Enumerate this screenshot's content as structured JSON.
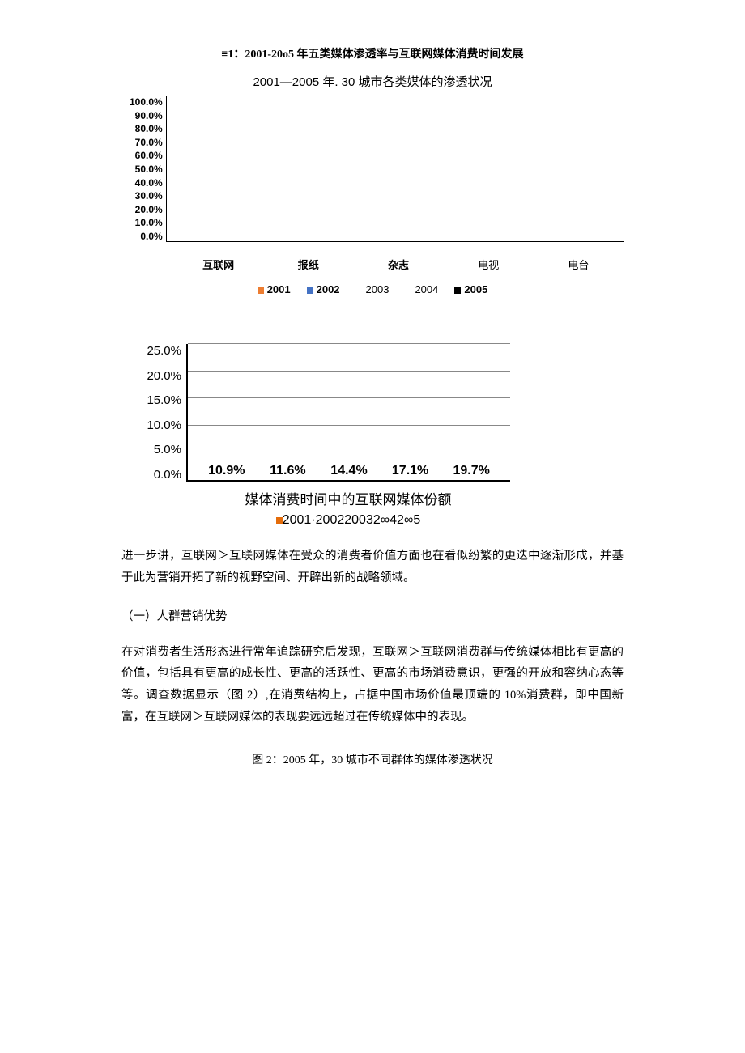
{
  "figure1": {
    "caption": "≡1：2001-20o5 年五类媒体渗透率与互联网媒体消费时间发展",
    "chart_top": {
      "type": "grouped-bar",
      "title": "2001—2005 年. 30 城市各类媒体的渗透状况",
      "ylabel_ticks": [
        "100.0%",
        "90.0%",
        "80.0%",
        "70.0%",
        "60.0%",
        "50.0%",
        "40.0%",
        "30.0%",
        "20.0%",
        "10.0%",
        "0.0%"
      ],
      "ylim": [
        0,
        100
      ],
      "categories": [
        "互联网",
        "报纸",
        "杂志",
        "电视",
        "电台"
      ],
      "categories_bold": [
        true,
        true,
        true,
        false,
        false
      ],
      "series": [
        {
          "label": "2001",
          "color": "#ed7d31",
          "sw_visible": true,
          "label_bold": true
        },
        {
          "label": "2002",
          "color": "#4472c4",
          "sw_visible": true,
          "label_bold": true
        },
        {
          "label": "2003",
          "color": "#000000",
          "sw_visible": false,
          "label_bold": false
        },
        {
          "label": "2004",
          "color": "#000000",
          "sw_visible": false,
          "label_bold": false
        },
        {
          "label": "2005",
          "color": "#000000",
          "sw_visible": true,
          "label_bold": true
        }
      ],
      "values": null,
      "title_fontsize": 15,
      "tick_fontsize": 12,
      "tick_fontweight": "bold",
      "axis_color": "#000000",
      "background_color": "#ffffff"
    },
    "chart_bottom": {
      "type": "bar",
      "title": "媒体消费时间中的互联网媒体份额",
      "ylabel_ticks": [
        "25.0%",
        "20.0%",
        "15.0%",
        "10.0%",
        "5.0%",
        "0.0%"
      ],
      "ylim": [
        0,
        25
      ],
      "grid_positions_pct": [
        20,
        40,
        60,
        80,
        100
      ],
      "grid_color": "#888888",
      "bars": [
        {
          "value": 10.9,
          "label": "10.9%",
          "color": "#e46c0a"
        },
        {
          "value": 11.6,
          "label": "11.6%",
          "color": "#3a5aa5"
        },
        {
          "value": 14.4,
          "label": "14.4%",
          "color": "#f7c100"
        },
        {
          "value": 17.1,
          "label": "17.1%",
          "color": "#8bc53f"
        },
        {
          "value": 19.7,
          "label": "19.7%",
          "color": "#000000"
        }
      ],
      "legend_text": "2001·200220032∞42∞5",
      "legend_sw_color": "#e46c0a",
      "legend_sw2_color": "#000000",
      "title_fontsize": 17,
      "tick_fontsize": 15,
      "label_fontsize": 16,
      "label_fontweight": "bold",
      "axis_color": "#000000",
      "background_color": "#ffffff",
      "bar_width": 0.85
    }
  },
  "body": {
    "para1": "进一步讲，互联网＞互联网媒体在受众的消费者价值方面也在看似纷繁的更迭中逐渐形成，并基于此为营销开拓了新的视野空间、开辟出新的战略领域。",
    "section1_head": "（一）人群营销优势",
    "para2": "在对消费者生活形态进行常年追踪研究后发现，互联网＞互联网消费群与传统媒体相比有更高的价值，包括具有更高的成长性、更高的活跃性、更高的市场消费意识，更强的开放和容纳心态等等。调查数据显示（图 2）,在消费结构上，占据中国市场价值最顶端的 10%消费群，即中国新富，在互联网＞互联网媒体的表现要远远超过在传统媒体中的表现。"
  },
  "figure2": {
    "caption": "图 2：2005 年，30 城市不同群体的媒体渗透状况"
  }
}
